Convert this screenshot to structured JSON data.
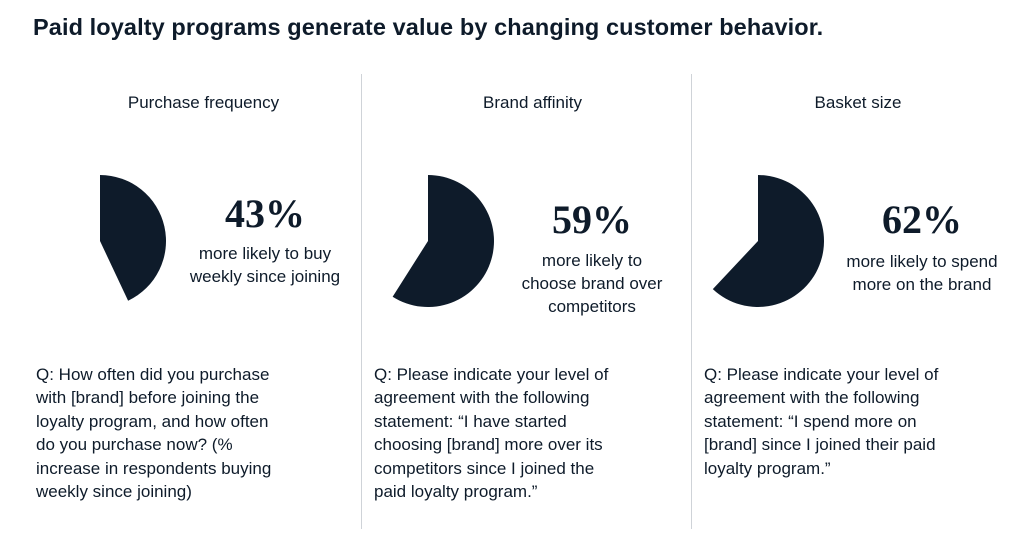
{
  "title": "Paid loyalty programs generate value by changing customer behavior.",
  "colors": {
    "pie": "#0e1b2a",
    "divider": "#cfd3d8",
    "text": "#0e1b2a"
  },
  "panels": [
    {
      "heading": "Purchase frequency",
      "value_label": "43%",
      "text_lines": [
        "more likely to buy",
        "weekly since joining"
      ],
      "question_lines": [
        "Q: How often did you purchase",
        "with [brand] before joining the",
        "loyalty program, and how often",
        "do you purchase now? (%",
        "increase in respondents buying",
        "weekly since joining)"
      ]
    },
    {
      "heading": "Brand affinity",
      "value_label": "59%",
      "text_lines": [
        "more likely to",
        "choose brand over",
        "competitors"
      ],
      "question_lines": [
        "Q: Please indicate your level of",
        "agreement with the following",
        "statement: “I have started",
        "choosing [brand] more over its",
        "competitors since I joined the",
        "paid loyalty program.”"
      ]
    },
    {
      "heading": "Basket size",
      "value_label": "62%",
      "text_lines": [
        "more likely to spend",
        "more on the brand"
      ],
      "question_lines": [
        "Q: Please indicate your level of",
        "agreement with the following",
        "statement: “I spend more on",
        "[brand] since I joined their paid",
        "loyalty program.”"
      ]
    }
  ],
  "chart_data": [
    {
      "type": "pie",
      "title": "Purchase frequency",
      "values": [
        43
      ],
      "unit": "%"
    },
    {
      "type": "pie",
      "title": "Brand affinity",
      "values": [
        59
      ],
      "unit": "%"
    },
    {
      "type": "pie",
      "title": "Basket size",
      "values": [
        62
      ],
      "unit": "%"
    }
  ]
}
